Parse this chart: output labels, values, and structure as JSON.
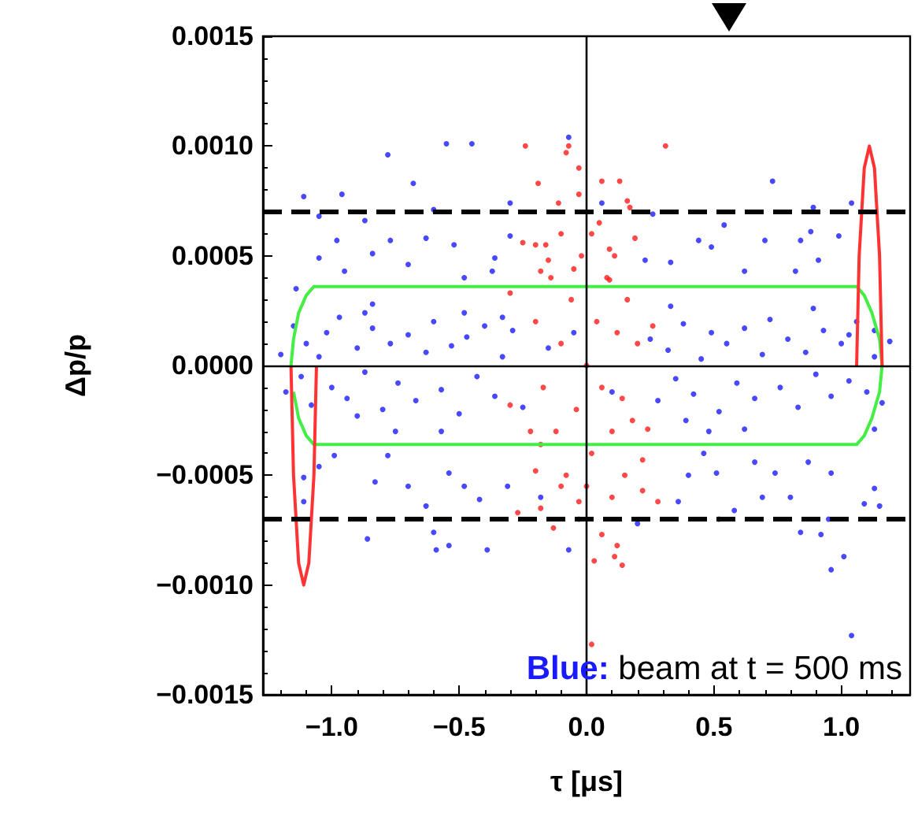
{
  "chart_data": {
    "type": "scatter",
    "xlabel": "τ [μs]",
    "ylabel": "Δp/p",
    "xlim": [
      -1.27,
      1.27
    ],
    "ylim": [
      -0.0015,
      0.0015
    ],
    "xticks": [
      {
        "value": -1,
        "label": "−1.0"
      },
      {
        "value": -0.5,
        "label": "−0.5"
      },
      {
        "value": 0,
        "label": "0.0"
      },
      {
        "value": 0.5,
        "label": "0.5"
      },
      {
        "value": 1,
        "label": "1.0"
      }
    ],
    "yticks": [
      {
        "value": -0.0015,
        "label": "−0.0015"
      },
      {
        "value": -0.001,
        "label": "−0.0010"
      },
      {
        "value": -0.0005,
        "label": "−0.0005"
      },
      {
        "value": 0,
        "label": "0.0000"
      },
      {
        "value": 0.0005,
        "label": "0.0005"
      },
      {
        "value": 0.001,
        "label": "0.0010"
      },
      {
        "value": 0.0015,
        "label": "0.0015"
      }
    ],
    "marker": "circle",
    "annotations": [
      "Blue: beam at t = 500 ms"
    ],
    "ref_lines": [
      {
        "axis": "y",
        "value": 0.0007,
        "color": "#000000",
        "line_style": "dashed"
      },
      {
        "axis": "y",
        "value": -0.0007,
        "color": "#000000",
        "line_style": "dashed"
      },
      {
        "axis": "y",
        "value": 0,
        "color": "#000000",
        "line_style": "solid"
      },
      {
        "axis": "x",
        "value": 0,
        "color": "#000000",
        "line_style": "solid"
      }
    ],
    "series": [
      {
        "color": "#1a1aff",
        "x": [
          -0.55,
          -0.45,
          -0.78,
          -0.07,
          -0.68,
          -1.11,
          -0.96,
          0.73,
          1.04,
          0.89,
          0.06,
          -0.3,
          -1.05,
          -0.87,
          -0.6,
          0.26,
          0.54,
          0.88,
          0.99,
          -0.98,
          -0.77,
          -0.84,
          -0.63,
          -0.52,
          -0.3,
          0.44,
          0.7,
          0.84,
          -1.05,
          -0.36,
          0.49,
          0.91,
          0.23,
          0.33,
          -0.95,
          -0.7,
          -0.48,
          -0.37,
          0.62,
          0.82,
          -1.14,
          -0.84,
          -0.87,
          -0.48,
          -0.33,
          0.33,
          0.89,
          1.03,
          1.13,
          -1.11,
          -1.11,
          -1.05,
          -0.99,
          -0.83,
          -0.78,
          -0.7,
          -0.75,
          -0.63,
          -0.54,
          -0.86,
          -0.6,
          -0.59,
          -0.54,
          -0.39,
          -0.42,
          -0.48,
          -0.31,
          -0.57,
          -0.9,
          -0.18,
          -0.07,
          0.36,
          0.4,
          0.46,
          0.51,
          0.52,
          0.58,
          0.66,
          0.69,
          0.74,
          0.8,
          0.84,
          0.87,
          0.92,
          0.96,
          1.01,
          1.04,
          0.96,
          1.09,
          1.15,
          1.13,
          1.13,
          0.62,
          0.39,
          0.48,
          0.2,
          0.95,
          -1.2,
          -1.18,
          -1.15,
          -1.12,
          -1.1,
          -1.08,
          -1.05,
          -1.02,
          -1.0,
          -0.97,
          -0.94,
          -0.9,
          -0.87,
          -0.84,
          -0.8,
          -0.77,
          -0.74,
          -0.7,
          -0.67,
          -0.63,
          -0.6,
          -0.57,
          -0.53,
          -0.5,
          -0.47,
          -0.43,
          -0.4,
          -0.36,
          -0.33,
          -0.29,
          -0.25,
          0.25,
          0.28,
          0.32,
          0.35,
          0.38,
          0.42,
          0.45,
          0.49,
          0.52,
          0.55,
          0.59,
          0.62,
          0.66,
          0.69,
          0.72,
          0.76,
          0.79,
          0.83,
          0.86,
          0.9,
          0.93,
          0.96,
          1.0,
          1.03,
          1.06,
          1.1,
          1.13,
          1.16,
          1.19,
          -0.15,
          0.1,
          -0.05
        ],
        "values": [
          0.00101,
          0.00101,
          0.00096,
          0.00104,
          0.00083,
          0.00077,
          0.00078,
          0.00084,
          0.00074,
          0.00072,
          0.00074,
          0.00074,
          0.00068,
          0.00066,
          0.00071,
          0.00069,
          0.00064,
          0.00061,
          0.00059,
          0.00057,
          0.00057,
          0.00051,
          0.00058,
          0.00055,
          0.00059,
          0.00057,
          0.00057,
          0.00057,
          0.00049,
          0.00049,
          0.00054,
          0.00048,
          0.00048,
          0.00047,
          0.00043,
          0.00046,
          0.0004,
          0.00043,
          0.00043,
          0.00043,
          0.00035,
          0.00028,
          0.00024,
          0.00024,
          0.00022,
          0.00027,
          0.00026,
          0.00014,
          0.00016,
          -0.00062,
          -0.00051,
          -0.00046,
          -0.00041,
          -0.00053,
          -0.00041,
          -0.00055,
          -0.0003,
          -0.00064,
          -0.00049,
          -0.00079,
          -0.00076,
          -0.00084,
          -0.00082,
          -0.00084,
          -0.00061,
          -0.00055,
          -0.00055,
          -0.0003,
          -0.00023,
          -0.0006,
          -0.00084,
          -0.00062,
          -0.0005,
          -0.0004,
          -0.00049,
          -0.0007,
          -0.00066,
          -0.00044,
          -0.0006,
          -0.00049,
          -0.0006,
          -0.00076,
          -0.00044,
          -0.00077,
          -0.00093,
          -0.00087,
          -0.00123,
          -0.00049,
          -0.00063,
          -0.00064,
          -0.00029,
          -0.00056,
          -0.00029,
          -0.00025,
          -0.0003,
          -0.00072,
          -0.0007,
          5e-05,
          -0.00012,
          0.00018,
          -5e-05,
          0.0001,
          -0.00018,
          4e-05,
          0.00015,
          -0.0001,
          0.00022,
          -0.00015,
          8e-05,
          -3e-05,
          0.00017,
          -0.0002,
          0.0001,
          -8e-05,
          0.00014,
          -0.00016,
          6e-05,
          0.0002,
          -0.00011,
          9e-05,
          -0.00022,
          0.00013,
          -5e-05,
          0.00018,
          -0.00014,
          4e-05,
          0.00016,
          -0.00019,
          0.00012,
          -0.00016,
          7e-05,
          -6e-05,
          0.00019,
          -0.00013,
          3e-05,
          0.00015,
          -0.00021,
          0.0001,
          -8e-05,
          0.00017,
          -0.00015,
          5e-05,
          0.00021,
          -0.0001,
          0.00012,
          -0.00019,
          6e-05,
          -4e-05,
          0.00016,
          -0.00014,
          0.0001,
          -7e-05,
          0.0002,
          -0.00012,
          4e-05,
          -0.00017,
          0.00011,
          8e-05,
          -0.00012,
          0.00015
        ]
      },
      {
        "color": "#ff1a1a",
        "x": [
          -0.24,
          0.31,
          -0.07,
          -0.08,
          -0.03,
          -0.19,
          0.06,
          0.13,
          -0.11,
          -0.03,
          0.16,
          0.17,
          -0.25,
          -0.2,
          0.19,
          0.26,
          -0.3,
          -0.18,
          -0.1,
          0.02,
          0.09,
          0.09,
          -0.05,
          -0.15,
          0.14,
          0.03,
          0.11,
          0.12,
          -0.13,
          -0.27,
          0.28,
          0.22,
          -0.18,
          -0.03,
          0.06,
          0.02,
          -0.1,
          0.0,
          0.1,
          -0.2,
          0.22,
          0.24,
          -0.3,
          -0.18,
          -0.2,
          -0.17,
          -0.14,
          -0.12,
          -0.1,
          -0.08,
          -0.06,
          -0.04,
          -0.02,
          0.0,
          0.02,
          0.04,
          0.06,
          0.08,
          0.1,
          0.12,
          0.14,
          0.16,
          0.18,
          0.2,
          -0.22,
          -0.16,
          0.05,
          -0.03,
          0.11,
          0.15
        ],
        "values": [
          0.001,
          0.001,
          0.001,
          0.00097,
          0.0009,
          0.00083,
          0.00084,
          0.00084,
          0.00074,
          0.00078,
          0.00075,
          0.00072,
          0.00056,
          0.00055,
          0.00058,
          0.00018,
          0.00033,
          0.00043,
          0.0006,
          0.0006,
          0.00053,
          0.00039,
          0.00044,
          0.00048,
          -0.00091,
          -0.00089,
          -0.00087,
          -0.00082,
          -0.00074,
          -0.00067,
          -0.00062,
          -0.00057,
          -0.00065,
          -0.0007,
          -0.00077,
          -0.00127,
          -0.00055,
          -0.00055,
          -0.0006,
          -0.00048,
          -0.00043,
          -0.00029,
          -0.00018,
          -0.00036,
          0.0002,
          -0.0001,
          0.0004,
          -0.0003,
          0.0001,
          -0.0005,
          0.0003,
          -0.0002,
          0.0005,
          0.0,
          -0.0004,
          0.0002,
          -0.0001,
          0.0004,
          -0.0003,
          0.00015,
          -0.00015,
          0.0003,
          -0.00025,
          0.0001,
          -0.0003,
          0.00055,
          0.00065,
          -0.00062,
          0.0005,
          -0.0005
        ]
      },
      {
        "type": "line",
        "marker": "none",
        "color": "#44ee44",
        "x": [
          -1.16,
          -1.15,
          -1.13,
          -1.1,
          -1.07,
          1.06,
          1.09,
          1.12,
          1.15,
          1.16,
          1.15,
          1.12,
          1.09,
          1.06,
          -1.07,
          -1.1,
          -1.13,
          -1.15
        ],
        "values": [
          0,
          0.00012,
          0.00024,
          0.00032,
          0.00036,
          0.00036,
          0.00032,
          0.00024,
          0.00012,
          0,
          -0.00012,
          -0.00024,
          -0.00032,
          -0.00036,
          -0.00036,
          -0.00032,
          -0.00024,
          -0.00012
        ]
      },
      {
        "type": "line",
        "marker": "none",
        "color": "#ff3333",
        "x": [
          -1.16,
          -1.15,
          -1.13,
          -1.11,
          -1.09,
          -1.07,
          -1.06,
          0,
          1.06,
          1.07,
          1.09,
          1.11,
          1.13,
          1.15,
          1.16
        ],
        "values": [
          0,
          -0.0005,
          -0.0009,
          -0.001,
          -0.0009,
          -0.0005,
          0,
          null,
          0,
          0.0005,
          0.0009,
          0.001,
          0.0009,
          0.0005,
          0
        ]
      }
    ]
  }
}
